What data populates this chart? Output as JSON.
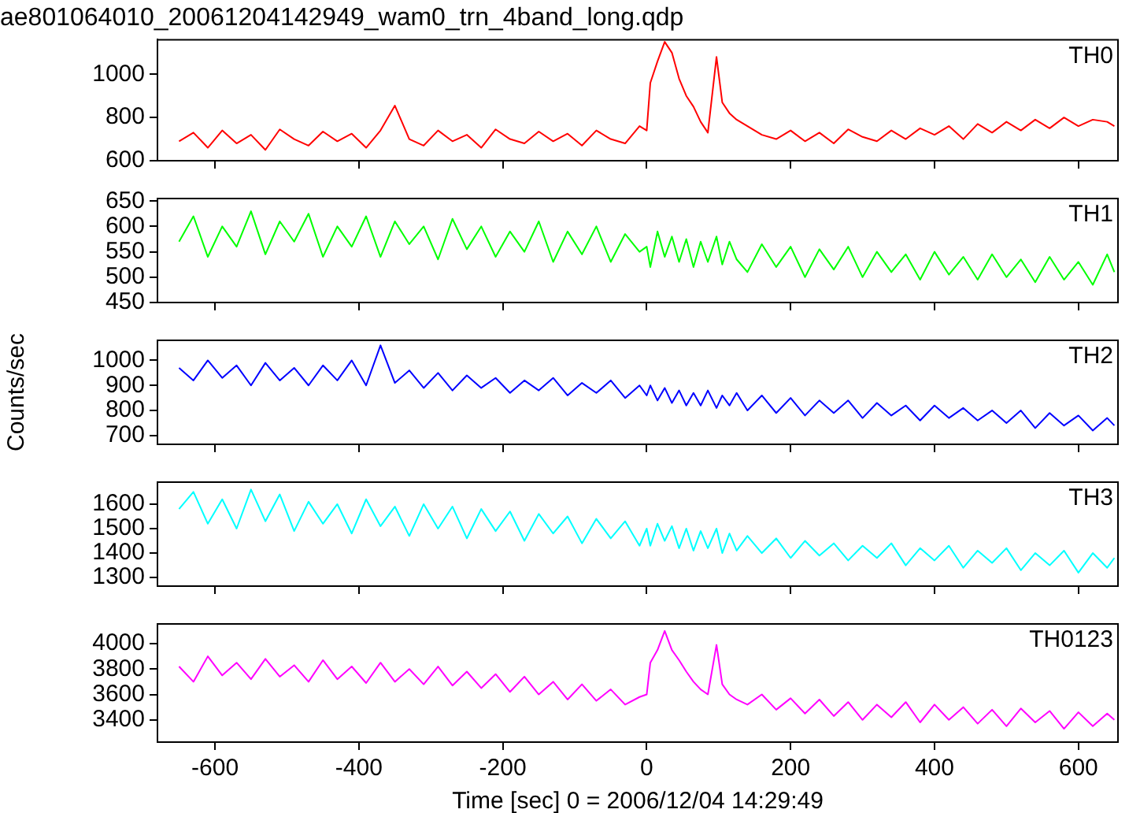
{
  "chart_data": [
    {
      "type": "line",
      "title": "ae801064010_20061204142949_wam0_trn_4band_long.qdp",
      "tick_labels": "y",
      "xlim": [
        -680,
        655
      ],
      "xticks": [
        -600,
        -400,
        -200,
        0,
        200,
        400,
        600
      ],
      "ylim": [
        600,
        1160
      ],
      "yticks": [
        600,
        800,
        1000
      ],
      "x": [
        -650,
        -630,
        -610,
        -590,
        -570,
        -550,
        -530,
        -510,
        -490,
        -470,
        -450,
        -430,
        -410,
        -390,
        -370,
        -350,
        -330,
        -310,
        -290,
        -270,
        -250,
        -230,
        -210,
        -190,
        -170,
        -150,
        -130,
        -110,
        -90,
        -70,
        -50,
        -30,
        -10,
        0,
        5,
        15,
        25,
        35,
        45,
        55,
        65,
        75,
        85,
        97,
        105,
        115,
        125,
        140,
        160,
        180,
        200,
        220,
        240,
        260,
        280,
        300,
        320,
        340,
        360,
        380,
        400,
        420,
        440,
        460,
        480,
        500,
        520,
        540,
        560,
        580,
        600,
        620,
        640,
        650
      ],
      "series": [
        {
          "name": "TH0",
          "color": "#ff0000",
          "values": [
            690,
            730,
            660,
            740,
            680,
            720,
            650,
            745,
            700,
            670,
            735,
            690,
            725,
            660,
            740,
            855,
            700,
            670,
            740,
            690,
            720,
            660,
            745,
            700,
            680,
            735,
            690,
            725,
            670,
            740,
            700,
            680,
            760,
            740,
            960,
            1060,
            1150,
            1100,
            980,
            900,
            850,
            780,
            730,
            1080,
            870,
            820,
            790,
            760,
            720,
            700,
            740,
            690,
            730,
            680,
            745,
            710,
            690,
            740,
            700,
            750,
            720,
            760,
            700,
            770,
            730,
            780,
            740,
            790,
            750,
            800,
            760,
            790,
            780,
            760
          ]
        }
      ]
    },
    {
      "type": "line",
      "tick_labels": "y",
      "xlim": [
        -680,
        655
      ],
      "xticks": [
        -600,
        -400,
        -200,
        0,
        200,
        400,
        600
      ],
      "ylim": [
        450,
        655
      ],
      "yticks": [
        450,
        500,
        550,
        600,
        650
      ],
      "x": [
        -650,
        -630,
        -610,
        -590,
        -570,
        -550,
        -530,
        -510,
        -490,
        -470,
        -450,
        -430,
        -410,
        -390,
        -370,
        -350,
        -330,
        -310,
        -290,
        -270,
        -250,
        -230,
        -210,
        -190,
        -170,
        -150,
        -130,
        -110,
        -90,
        -70,
        -50,
        -30,
        -10,
        0,
        5,
        15,
        25,
        35,
        45,
        55,
        65,
        75,
        85,
        97,
        105,
        115,
        125,
        140,
        160,
        180,
        200,
        220,
        240,
        260,
        280,
        300,
        320,
        340,
        360,
        380,
        400,
        420,
        440,
        460,
        480,
        500,
        520,
        540,
        560,
        580,
        600,
        620,
        640,
        650
      ],
      "series": [
        {
          "name": "TH1",
          "color": "#00ff00",
          "values": [
            570,
            620,
            540,
            600,
            560,
            630,
            545,
            610,
            570,
            625,
            540,
            600,
            560,
            620,
            540,
            610,
            565,
            600,
            535,
            615,
            555,
            600,
            540,
            590,
            550,
            610,
            530,
            590,
            545,
            600,
            530,
            585,
            550,
            560,
            520,
            590,
            540,
            580,
            530,
            575,
            520,
            570,
            530,
            580,
            525,
            570,
            535,
            510,
            565,
            520,
            560,
            500,
            555,
            515,
            560,
            500,
            550,
            510,
            545,
            495,
            550,
            505,
            540,
            495,
            545,
            500,
            535,
            490,
            540,
            495,
            530,
            485,
            545,
            510
          ]
        }
      ]
    },
    {
      "type": "line",
      "tick_labels": "y",
      "ylabel": "Counts/sec",
      "xlim": [
        -680,
        655
      ],
      "xticks": [
        -600,
        -400,
        -200,
        0,
        200,
        400,
        600
      ],
      "ylim": [
        665,
        1080
      ],
      "yticks": [
        700,
        800,
        900,
        1000
      ],
      "x": [
        -650,
        -630,
        -610,
        -590,
        -570,
        -550,
        -530,
        -510,
        -490,
        -470,
        -450,
        -430,
        -410,
        -390,
        -370,
        -350,
        -330,
        -310,
        -290,
        -270,
        -250,
        -230,
        -210,
        -190,
        -170,
        -150,
        -130,
        -110,
        -90,
        -70,
        -50,
        -30,
        -10,
        0,
        5,
        15,
        25,
        35,
        45,
        55,
        65,
        75,
        85,
        97,
        105,
        115,
        125,
        140,
        160,
        180,
        200,
        220,
        240,
        260,
        280,
        300,
        320,
        340,
        360,
        380,
        400,
        420,
        440,
        460,
        480,
        500,
        520,
        540,
        560,
        580,
        600,
        620,
        640,
        650
      ],
      "series": [
        {
          "name": "TH2",
          "color": "#0000ff",
          "values": [
            970,
            920,
            1000,
            930,
            980,
            900,
            990,
            920,
            970,
            900,
            980,
            920,
            1000,
            900,
            1060,
            910,
            960,
            890,
            950,
            880,
            940,
            890,
            930,
            870,
            920,
            880,
            930,
            860,
            910,
            870,
            920,
            850,
            900,
            860,
            900,
            840,
            890,
            830,
            880,
            820,
            870,
            820,
            880,
            810,
            860,
            820,
            870,
            800,
            860,
            790,
            850,
            780,
            840,
            790,
            840,
            770,
            830,
            780,
            820,
            760,
            820,
            770,
            810,
            760,
            800,
            750,
            800,
            730,
            790,
            740,
            780,
            720,
            770,
            740
          ]
        }
      ]
    },
    {
      "type": "line",
      "tick_labels": "y",
      "xlim": [
        -680,
        655
      ],
      "xticks": [
        -600,
        -400,
        -200,
        0,
        200,
        400,
        600
      ],
      "ylim": [
        1265,
        1690
      ],
      "yticks": [
        1300,
        1400,
        1500,
        1600
      ],
      "x": [
        -650,
        -630,
        -610,
        -590,
        -570,
        -550,
        -530,
        -510,
        -490,
        -470,
        -450,
        -430,
        -410,
        -390,
        -370,
        -350,
        -330,
        -310,
        -290,
        -270,
        -250,
        -230,
        -210,
        -190,
        -170,
        -150,
        -130,
        -110,
        -90,
        -70,
        -50,
        -30,
        -10,
        0,
        5,
        15,
        25,
        35,
        45,
        55,
        65,
        75,
        85,
        97,
        105,
        115,
        125,
        140,
        160,
        180,
        200,
        220,
        240,
        260,
        280,
        300,
        320,
        340,
        360,
        380,
        400,
        420,
        440,
        460,
        480,
        500,
        520,
        540,
        560,
        580,
        600,
        620,
        640,
        650
      ],
      "series": [
        {
          "name": "TH3",
          "color": "#00ffff",
          "values": [
            1580,
            1650,
            1520,
            1620,
            1500,
            1660,
            1530,
            1640,
            1490,
            1610,
            1520,
            1600,
            1480,
            1620,
            1510,
            1590,
            1470,
            1600,
            1500,
            1590,
            1460,
            1580,
            1490,
            1570,
            1450,
            1560,
            1480,
            1550,
            1440,
            1540,
            1460,
            1530,
            1430,
            1500,
            1430,
            1520,
            1450,
            1510,
            1420,
            1500,
            1410,
            1490,
            1420,
            1500,
            1400,
            1480,
            1410,
            1470,
            1400,
            1460,
            1380,
            1450,
            1390,
            1440,
            1370,
            1430,
            1380,
            1440,
            1350,
            1420,
            1370,
            1430,
            1340,
            1410,
            1360,
            1420,
            1330,
            1400,
            1350,
            1410,
            1320,
            1400,
            1340,
            1380
          ]
        }
      ]
    },
    {
      "type": "line",
      "xlabel": "Time [sec] 0 = 2006/12/04 14:29:49",
      "xlim": [
        -680,
        655
      ],
      "xticks": [
        -600,
        -400,
        -200,
        0,
        200,
        400,
        600
      ],
      "ylim": [
        3225,
        4155
      ],
      "yticks": [
        3400,
        3600,
        3800,
        4000
      ],
      "x": [
        -650,
        -630,
        -610,
        -590,
        -570,
        -550,
        -530,
        -510,
        -490,
        -470,
        -450,
        -430,
        -410,
        -390,
        -370,
        -350,
        -330,
        -310,
        -290,
        -270,
        -250,
        -230,
        -210,
        -190,
        -170,
        -150,
        -130,
        -110,
        -90,
        -70,
        -50,
        -30,
        -10,
        0,
        5,
        15,
        25,
        35,
        45,
        55,
        65,
        75,
        85,
        97,
        105,
        115,
        125,
        140,
        160,
        180,
        200,
        220,
        240,
        260,
        280,
        300,
        320,
        340,
        360,
        380,
        400,
        420,
        440,
        460,
        480,
        500,
        520,
        540,
        560,
        580,
        600,
        620,
        640,
        650
      ],
      "series": [
        {
          "name": "TH0123",
          "color": "#ff00ff",
          "values": [
            3820,
            3700,
            3900,
            3750,
            3850,
            3720,
            3880,
            3740,
            3830,
            3700,
            3870,
            3720,
            3820,
            3690,
            3850,
            3700,
            3800,
            3680,
            3820,
            3670,
            3780,
            3650,
            3760,
            3620,
            3740,
            3600,
            3700,
            3560,
            3680,
            3550,
            3640,
            3520,
            3580,
            3600,
            3850,
            3950,
            4100,
            3950,
            3870,
            3780,
            3700,
            3640,
            3600,
            3990,
            3680,
            3600,
            3560,
            3520,
            3600,
            3480,
            3570,
            3450,
            3560,
            3430,
            3540,
            3400,
            3520,
            3420,
            3540,
            3380,
            3520,
            3400,
            3500,
            3370,
            3480,
            3350,
            3490,
            3380,
            3470,
            3330,
            3460,
            3350,
            3450,
            3400
          ]
        }
      ]
    }
  ]
}
